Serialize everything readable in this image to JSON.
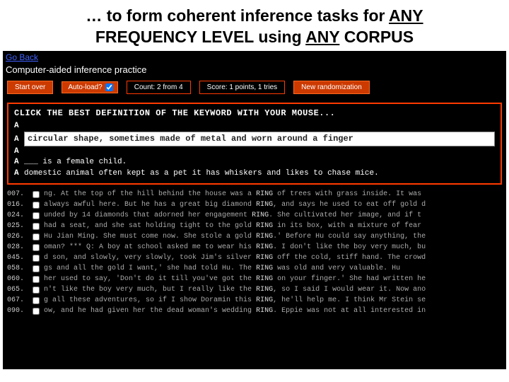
{
  "slide": {
    "prefix": "… to form coherent inference tasks for ",
    "u1": "ANY",
    "mid": "FREQUENCY LEVEL using ",
    "u2": "ANY",
    "suffix": " CORPUS"
  },
  "nav": {
    "go_back": "Go Back"
  },
  "app_title": "Computer-aided inference practice",
  "toolbar": {
    "start_over": "Start over",
    "autoload_label": "Auto-load?",
    "autoload_checked": true,
    "count": "Count: 2 from 4",
    "score": "Score: 1 points, 1 tries",
    "new_random": "New randomization"
  },
  "defs": {
    "header": "CLICK THE BEST DEFINITION OF THE KEYWORD WITH YOUR MOUSE...",
    "rows": [
      {
        "letter": "A",
        "text": "",
        "hl": false
      },
      {
        "letter": "A",
        "text": "circular shape, sometimes made of metal and worn around a finger",
        "hl": true
      },
      {
        "letter": "A",
        "text": "",
        "hl": false
      },
      {
        "letter": "A",
        "text": "___ is a female child.",
        "hl": false
      },
      {
        "letter": "A",
        "text": "domestic animal often kept as a pet it has whiskers and likes to chase mice.",
        "hl": false
      }
    ]
  },
  "keyword": "RING",
  "conc": [
    {
      "n": "007.",
      "pre": "ng. At the top of the hill behind the house was a ",
      "post": " of trees with grass inside. It was"
    },
    {
      "n": "016.",
      "pre": "always awful here. But he has a great big diamond ",
      "post": ", and says he used to eat off gold d"
    },
    {
      "n": "024.",
      "pre": "unded by 14 diamonds that adorned her engagement ",
      "post": ". She cultivated her image, and if t"
    },
    {
      "n": "025.",
      "pre": "had a seat, and she sat holding tight to the gold ",
      "post": " in its box, with a mixture of fear "
    },
    {
      "n": "026.",
      "pre": "Hu Jian Ming. She must come now. She stole a gold ",
      "post": ".' Before Hu could say anything, the"
    },
    {
      "n": "028.",
      "pre": "oman? *** Q: A boy at school asked me to wear his ",
      "post": ". I don't like the boy very much, bu"
    },
    {
      "n": "045.",
      "pre": "d son, and slowly, very slowly, took Jim's silver ",
      "post": " off the cold, stiff hand. The crowd"
    },
    {
      "n": "058.",
      "pre": "gs and all the gold I want,' she had told Hu. The ",
      "post": " was old and very valuable. Hu"
    },
    {
      "n": "060.",
      "pre": "her used to say, 'Don't do it till you've got the ",
      "post": " on your finger.' She had written he"
    },
    {
      "n": "065.",
      "pre": "n't like the boy very much, but I really like the ",
      "post": ", so I said I would wear it. Now ano"
    },
    {
      "n": "067.",
      "pre": "g all these adventures, so if I show Doramin this ",
      "post": ", he'll help me. I think Mr Stein se"
    },
    {
      "n": "090.",
      "pre": "ow, and he had given her the dead woman's wedding ",
      "post": ". Eppie was not at all interested in"
    }
  ],
  "colors": {
    "accent": "#cc3a00",
    "accent_border": "#ff3a00",
    "bg": "#000000",
    "text": "#ffffff"
  }
}
